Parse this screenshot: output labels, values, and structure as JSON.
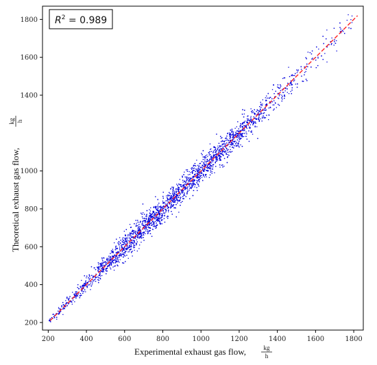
{
  "chart_data": {
    "type": "scatter",
    "title": "",
    "xlabel": "Experimental exhaust gas flow,",
    "ylabel": "Theoretical exhaust gas flow,",
    "unit_numerator": "kg",
    "unit_denominator": "h",
    "xlim": [
      170,
      1850
    ],
    "ylim": [
      160,
      1870
    ],
    "x_ticks": [
      200,
      400,
      600,
      800,
      1000,
      1200,
      1400,
      1600,
      1800
    ],
    "y_ticks": [
      200,
      400,
      600,
      800,
      1000,
      1400,
      1600,
      1800
    ],
    "grid": false,
    "annotation": {
      "r2_symbol": "R",
      "r2_exponent": "2",
      "r2_relation": " = ",
      "r2_value": "0.989"
    },
    "scatter_color": "#0000dd",
    "fit_line": {
      "x": [
        210,
        1820
      ],
      "y": [
        210,
        1820
      ],
      "color": "#ff2020",
      "style": "dashed"
    },
    "density_profile": [
      {
        "x": 200,
        "density": 0.15,
        "spread": 8
      },
      {
        "x": 300,
        "density": 0.25,
        "spread": 14
      },
      {
        "x": 400,
        "density": 0.4,
        "spread": 18
      },
      {
        "x": 500,
        "density": 0.7,
        "spread": 24
      },
      {
        "x": 600,
        "density": 1.0,
        "spread": 30
      },
      {
        "x": 700,
        "density": 1.0,
        "spread": 32
      },
      {
        "x": 800,
        "density": 0.95,
        "spread": 34
      },
      {
        "x": 900,
        "density": 0.9,
        "spread": 34
      },
      {
        "x": 1000,
        "density": 0.95,
        "spread": 32
      },
      {
        "x": 1100,
        "density": 0.9,
        "spread": 32
      },
      {
        "x": 1200,
        "density": 0.75,
        "spread": 32
      },
      {
        "x": 1300,
        "density": 0.5,
        "spread": 32
      },
      {
        "x": 1400,
        "density": 0.3,
        "spread": 34
      },
      {
        "x": 1500,
        "density": 0.15,
        "spread": 34
      },
      {
        "x": 1600,
        "density": 0.1,
        "spread": 36
      },
      {
        "x": 1700,
        "density": 0.07,
        "spread": 34
      },
      {
        "x": 1800,
        "density": 0.03,
        "spread": 28
      }
    ]
  }
}
